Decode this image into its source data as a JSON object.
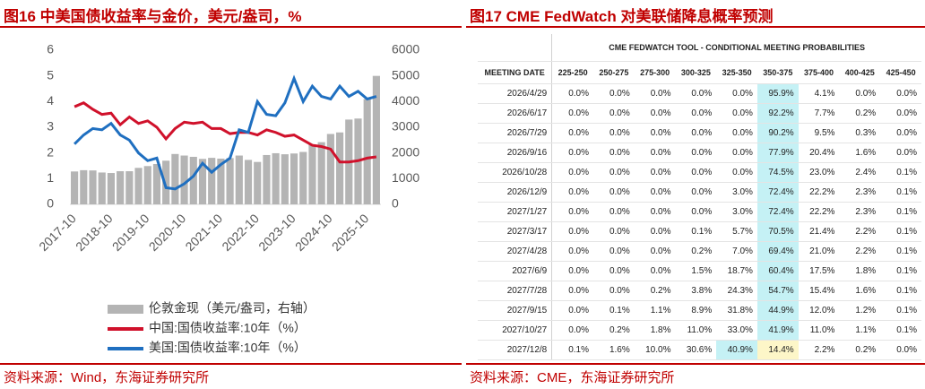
{
  "chart_data": {
    "type": "line",
    "title": "图16  中美国债收益率与金价，美元/盎司，%",
    "source": "资料来源：Wind，东海证券研究所",
    "x": [
      "2017-10",
      "2018-01",
      "2018-04",
      "2018-07",
      "2018-10",
      "2019-01",
      "2019-04",
      "2019-07",
      "2019-10",
      "2020-01",
      "2020-04",
      "2020-07",
      "2020-10",
      "2021-01",
      "2021-04",
      "2021-07",
      "2021-10",
      "2022-01",
      "2022-04",
      "2022-07",
      "2022-10",
      "2023-01",
      "2023-04",
      "2023-07",
      "2023-10",
      "2024-01",
      "2024-04",
      "2024-07",
      "2024-10",
      "2025-01",
      "2025-04",
      "2025-07",
      "2025-10",
      "2026-01"
    ],
    "xticks": [
      "2017-10",
      "2018-10",
      "2019-10",
      "2020-10",
      "2021-10",
      "2022-10",
      "2023-10",
      "2024-10",
      "2025-10"
    ],
    "ylim": [
      0,
      6
    ],
    "yticks": [
      0,
      1,
      2,
      3,
      4,
      5,
      6
    ],
    "y2lim": [
      0,
      6000
    ],
    "y2ticks": [
      0,
      1000,
      2000,
      3000,
      4000,
      5000,
      6000
    ],
    "series": [
      {
        "name": "伦敦金现（美元/盎司，右轴）",
        "type": "bar",
        "axis": "y2",
        "color": "#b4b4b4",
        "values": [
          1280,
          1330,
          1320,
          1240,
          1220,
          1290,
          1290,
          1420,
          1490,
          1570,
          1700,
          1960,
          1900,
          1850,
          1770,
          1810,
          1780,
          1800,
          1900,
          1730,
          1650,
          1920,
          1990,
          1950,
          1980,
          2040,
          2330,
          2420,
          2740,
          2800,
          3300,
          3340,
          4100,
          5000
        ]
      },
      {
        "name": "中国:国债收益率:10年（%）",
        "type": "line",
        "color": "#d0112b",
        "values": [
          3.8,
          3.95,
          3.7,
          3.5,
          3.55,
          3.1,
          3.4,
          3.15,
          3.25,
          3.0,
          2.55,
          2.95,
          3.2,
          3.15,
          3.2,
          2.95,
          2.95,
          2.75,
          2.8,
          2.8,
          2.7,
          2.9,
          2.8,
          2.65,
          2.7,
          2.5,
          2.3,
          2.25,
          2.15,
          1.65,
          1.65,
          1.7,
          1.8,
          1.85
        ]
      },
      {
        "name": "美国:国债收益率:10年（%）",
        "type": "line",
        "color": "#1f6fc0",
        "values": [
          2.35,
          2.7,
          2.95,
          2.9,
          3.15,
          2.7,
          2.5,
          2.0,
          1.7,
          1.8,
          0.65,
          0.6,
          0.8,
          1.1,
          1.6,
          1.25,
          1.55,
          1.8,
          2.9,
          2.8,
          4.0,
          3.5,
          3.45,
          3.95,
          4.9,
          4.0,
          4.6,
          4.2,
          4.1,
          4.6,
          4.2,
          4.4,
          4.1,
          4.2
        ]
      }
    ]
  },
  "table": {
    "title": "图17  CME FedWatch 对美联储降息概率预测",
    "source": "资料来源：CME，东海证券研究所",
    "caption": "CME FEDWATCH TOOL - CONDITIONAL MEETING PROBABILITIES",
    "columns": [
      "MEETING DATE",
      "225-250",
      "250-275",
      "275-300",
      "300-325",
      "325-350",
      "350-375",
      "375-400",
      "400-425",
      "425-450"
    ],
    "rows": [
      [
        "2026/4/29",
        "0.0%",
        "0.0%",
        "0.0%",
        "0.0%",
        "0.0%",
        "95.9%",
        "4.1%",
        "0.0%",
        "0.0%"
      ],
      [
        "2026/6/17",
        "0.0%",
        "0.0%",
        "0.0%",
        "0.0%",
        "0.0%",
        "92.2%",
        "7.7%",
        "0.2%",
        "0.0%"
      ],
      [
        "2026/7/29",
        "0.0%",
        "0.0%",
        "0.0%",
        "0.0%",
        "0.0%",
        "90.2%",
        "9.5%",
        "0.3%",
        "0.0%"
      ],
      [
        "2026/9/16",
        "0.0%",
        "0.0%",
        "0.0%",
        "0.0%",
        "0.0%",
        "77.9%",
        "20.4%",
        "1.6%",
        "0.0%"
      ],
      [
        "2026/10/28",
        "0.0%",
        "0.0%",
        "0.0%",
        "0.0%",
        "0.0%",
        "74.5%",
        "23.0%",
        "2.4%",
        "0.1%"
      ],
      [
        "2026/12/9",
        "0.0%",
        "0.0%",
        "0.0%",
        "0.0%",
        "3.0%",
        "72.4%",
        "22.2%",
        "2.3%",
        "0.1%"
      ],
      [
        "2027/1/27",
        "0.0%",
        "0.0%",
        "0.0%",
        "0.0%",
        "3.0%",
        "72.4%",
        "22.2%",
        "2.3%",
        "0.1%"
      ],
      [
        "2027/3/17",
        "0.0%",
        "0.0%",
        "0.0%",
        "0.1%",
        "5.7%",
        "70.5%",
        "21.4%",
        "2.2%",
        "0.1%"
      ],
      [
        "2027/4/28",
        "0.0%",
        "0.0%",
        "0.0%",
        "0.2%",
        "7.0%",
        "69.4%",
        "21.0%",
        "2.2%",
        "0.1%"
      ],
      [
        "2027/6/9",
        "0.0%",
        "0.0%",
        "0.0%",
        "1.5%",
        "18.7%",
        "60.4%",
        "17.5%",
        "1.8%",
        "0.1%"
      ],
      [
        "2027/7/28",
        "0.0%",
        "0.0%",
        "0.2%",
        "3.8%",
        "24.3%",
        "54.7%",
        "15.4%",
        "1.6%",
        "0.1%"
      ],
      [
        "2027/9/15",
        "0.0%",
        "0.1%",
        "1.1%",
        "8.9%",
        "31.8%",
        "44.9%",
        "12.0%",
        "1.2%",
        "0.1%"
      ],
      [
        "2027/10/27",
        "0.0%",
        "0.2%",
        "1.8%",
        "11.0%",
        "33.0%",
        "41.9%",
        "11.0%",
        "1.1%",
        "0.1%"
      ],
      [
        "2027/12/8",
        "0.1%",
        "1.6%",
        "10.0%",
        "30.6%",
        "40.9%",
        "14.4%",
        "2.2%",
        "0.2%",
        "0.0%"
      ]
    ]
  }
}
